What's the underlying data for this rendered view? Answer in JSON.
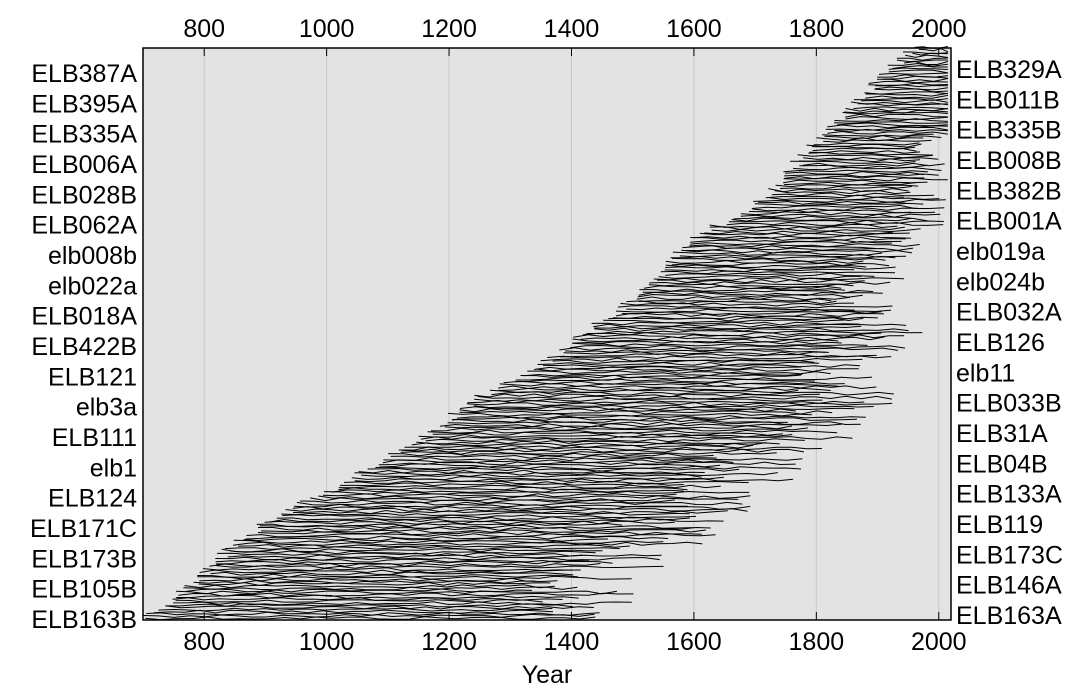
{
  "chart_data": {
    "type": "dendrochronology-segment-plot",
    "xlabel": "Year",
    "xlim": [
      700,
      2020
    ],
    "x_ticks": [
      800,
      1000,
      1200,
      1400,
      1600,
      1800,
      2000
    ],
    "x_ticks_top": [
      800,
      1000,
      1200,
      1400,
      1600,
      1800,
      2000
    ],
    "grid": "vertical at major ticks",
    "left_labels": [
      "ELB387A",
      "ELB395A",
      "ELB335A",
      "ELB006A",
      "ELB028B",
      "ELB062A",
      "elb008b",
      "elb022a",
      "ELB018A",
      "ELB422B",
      "ELB121",
      "elb3a",
      "ELB111",
      "elb1",
      "ELB124",
      "ELB171C",
      "ELB173B",
      "ELB105B",
      "ELB163B"
    ],
    "right_labels": [
      "ELB329A",
      "ELB011B",
      "ELB335B",
      "ELB008B",
      "ELB382B",
      "ELB001A",
      "elb019a",
      "elb024b",
      "ELB032A",
      "ELB126",
      "elb11",
      "ELB033B",
      "ELB31A",
      "ELB04B",
      "ELB133A",
      "ELB119",
      "ELB173C",
      "ELB146A",
      "ELB163A"
    ],
    "series_count": 270,
    "segments_sampled": [
      {
        "start": 700,
        "end": 1500
      },
      {
        "start": 780,
        "end": 1510
      },
      {
        "start": 830,
        "end": 1580
      },
      {
        "start": 900,
        "end": 1680
      },
      {
        "start": 1000,
        "end": 1760
      },
      {
        "start": 1100,
        "end": 1780
      },
      {
        "start": 1180,
        "end": 1930
      },
      {
        "start": 1250,
        "end": 1940
      },
      {
        "start": 1350,
        "end": 1900
      },
      {
        "start": 1420,
        "end": 2000
      },
      {
        "start": 1500,
        "end": 1910
      },
      {
        "start": 1550,
        "end": 1960
      },
      {
        "start": 1600,
        "end": 2010
      },
      {
        "start": 1700,
        "end": 2015
      },
      {
        "start": 1750,
        "end": 2015
      },
      {
        "start": 1800,
        "end": 2015
      },
      {
        "start": 1850,
        "end": 2015
      },
      {
        "start": 1900,
        "end": 2015
      },
      {
        "start": 1960,
        "end": 2015
      }
    ]
  }
}
